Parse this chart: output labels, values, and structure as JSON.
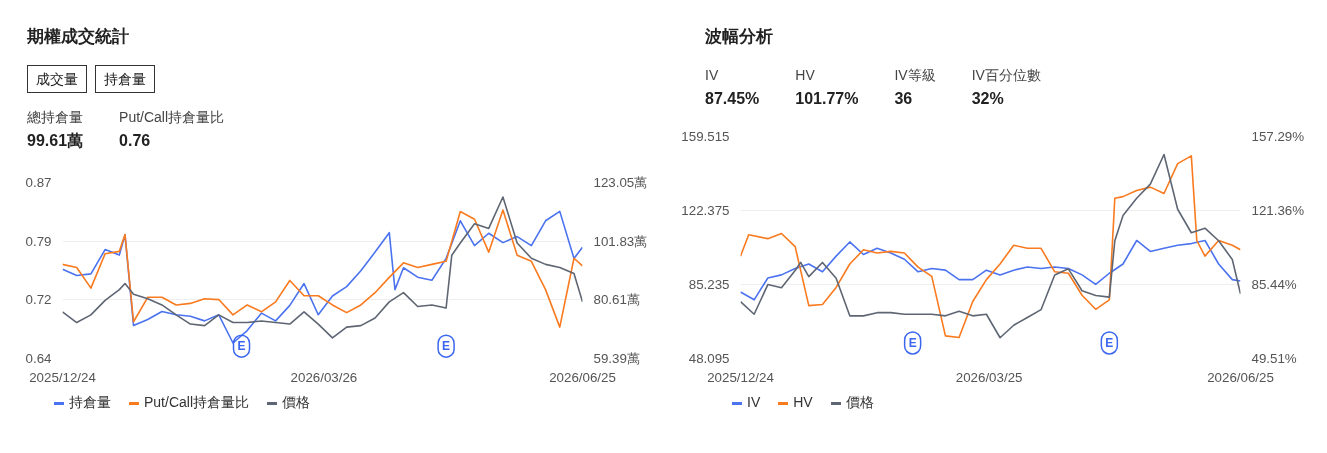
{
  "chart_data": [
    {
      "type": "line",
      "title": "期權成交統計",
      "annotations": [
        "成交量",
        "持倉量",
        "總持倉量",
        "99.61萬",
        "Put/Call持倉量比",
        "0.76",
        {
          "text": "E",
          "x": "2026-02-25"
        },
        {
          "text": "E",
          "x": "2026-05-08"
        }
      ],
      "xlim": [
        "2025-12-24",
        "2026-06-25"
      ],
      "xticks": [
        {
          "value": "2025-12-24",
          "label": "2025/12/24"
        },
        {
          "value": "2026-03-26",
          "label": "2026/03/26"
        },
        {
          "value": "2026-06-25",
          "label": "2026/06/25"
        }
      ],
      "ylim": [
        0.64,
        0.87
      ],
      "yticks": [
        0.64,
        {
          "value": 0.7167,
          "label": "0.72"
        },
        {
          "value": 0.7933,
          "label": "0.79"
        },
        0.87
      ],
      "y2lim": [
        59.39,
        123.05
      ],
      "y2ticks": [
        {
          "value": 59.39,
          "label": "59.39萬"
        },
        {
          "value": 80.61,
          "label": "80.61萬"
        },
        {
          "value": 101.83,
          "label": "101.83萬"
        },
        {
          "value": 123.05,
          "label": "123.05萬"
        }
      ],
      "grid": "y",
      "legend": "bottom",
      "marker": "none",
      "line_style": "solid",
      "series": [
        {
          "name": "持倉量",
          "color": "#4b73f0",
          "axis": "y2",
          "x": [
            "2025-12-24",
            "2025-12-29",
            "2026-01-03",
            "2026-01-08",
            "2026-01-13",
            "2026-01-15",
            "2026-01-18",
            "2026-01-23",
            "2026-01-28",
            "2026-02-02",
            "2026-02-07",
            "2026-02-12",
            "2026-02-17",
            "2026-02-22",
            "2026-02-27",
            "2026-03-04",
            "2026-03-09",
            "2026-03-14",
            "2026-03-19",
            "2026-03-24",
            "2026-03-29",
            "2026-04-03",
            "2026-04-08",
            "2026-04-13",
            "2026-04-18",
            "2026-04-20",
            "2026-04-23",
            "2026-04-28",
            "2026-05-03",
            "2026-05-08",
            "2026-05-13",
            "2026-05-18",
            "2026-05-23",
            "2026-05-28",
            "2026-06-02",
            "2026-06-07",
            "2026-06-12",
            "2026-06-17",
            "2026-06-22",
            "2026-06-25"
          ],
          "values": [
            91.7,
            89.4,
            90.0,
            98.8,
            96.8,
            104.1,
            71.3,
            73.5,
            76.4,
            75.2,
            74.7,
            73.0,
            75.2,
            65.0,
            69.5,
            75.8,
            73.0,
            78.6,
            86.5,
            75.2,
            82.0,
            85.4,
            91.1,
            97.9,
            104.9,
            84.3,
            92.2,
            88.8,
            87.7,
            95.6,
            109.2,
            100.2,
            104.7,
            101.3,
            103.5,
            100.2,
            109.2,
            112.6,
            95.6,
            99.6
          ]
        },
        {
          "name": "Put/Call持倉量比",
          "color": "#f97a1f",
          "x": [
            "2025-12-24",
            "2025-12-29",
            "2026-01-03",
            "2026-01-08",
            "2026-01-13",
            "2026-01-15",
            "2026-01-18",
            "2026-01-23",
            "2026-01-28",
            "2026-02-02",
            "2026-02-07",
            "2026-02-12",
            "2026-02-17",
            "2026-02-22",
            "2026-02-27",
            "2026-03-04",
            "2026-03-09",
            "2026-03-14",
            "2026-03-19",
            "2026-03-24",
            "2026-03-29",
            "2026-04-03",
            "2026-04-08",
            "2026-04-13",
            "2026-04-18",
            "2026-04-23",
            "2026-04-28",
            "2026-05-03",
            "2026-05-08",
            "2026-05-13",
            "2026-05-18",
            "2026-05-23",
            "2026-05-28",
            "2026-06-02",
            "2026-06-07",
            "2026-06-12",
            "2026-06-17",
            "2026-06-22",
            "2026-06-25"
          ],
          "values": [
            0.763,
            0.759,
            0.732,
            0.777,
            0.78,
            0.802,
            0.688,
            0.72,
            0.72,
            0.71,
            0.712,
            0.718,
            0.717,
            0.697,
            0.71,
            0.701,
            0.714,
            0.742,
            0.722,
            0.722,
            0.71,
            0.7,
            0.71,
            0.726,
            0.746,
            0.765,
            0.759,
            0.763,
            0.767,
            0.832,
            0.822,
            0.779,
            0.834,
            0.775,
            0.767,
            0.73,
            0.681,
            0.771,
            0.761
          ]
        },
        {
          "name": "價格",
          "color": "#5f6673",
          "x": [
            "2025-12-24",
            "2025-12-29",
            "2026-01-03",
            "2026-01-08",
            "2026-01-13",
            "2026-01-15",
            "2026-01-18",
            "2026-01-23",
            "2026-01-28",
            "2026-02-02",
            "2026-02-07",
            "2026-02-12",
            "2026-02-17",
            "2026-02-22",
            "2026-02-27",
            "2026-03-04",
            "2026-03-09",
            "2026-03-14",
            "2026-03-19",
            "2026-03-24",
            "2026-03-29",
            "2026-04-03",
            "2026-04-08",
            "2026-04-13",
            "2026-04-18",
            "2026-04-23",
            "2026-04-28",
            "2026-05-03",
            "2026-05-08",
            "2026-05-10",
            "2026-05-13",
            "2026-05-18",
            "2026-05-23",
            "2026-05-28",
            "2026-06-02",
            "2026-06-07",
            "2026-06-12",
            "2026-06-17",
            "2026-06-22",
            "2026-06-25"
          ],
          "values": [
            0.701,
            0.687,
            0.697,
            0.716,
            0.73,
            0.738,
            0.724,
            0.718,
            0.71,
            0.697,
            0.685,
            0.683,
            0.697,
            0.687,
            0.687,
            0.689,
            0.687,
            0.685,
            0.701,
            0.685,
            0.667,
            0.681,
            0.683,
            0.693,
            0.714,
            0.726,
            0.708,
            0.71,
            0.706,
            0.775,
            0.791,
            0.816,
            0.81,
            0.851,
            0.791,
            0.771,
            0.763,
            0.759,
            0.751,
            0.714
          ]
        }
      ]
    },
    {
      "type": "line",
      "title": "波幅分析",
      "annotations": [
        "IV",
        "87.45%",
        "HV",
        "101.77%",
        "IV等級",
        "36",
        "IV百分位數",
        "32%",
        {
          "text": "E",
          "x": "2026-02-25"
        },
        {
          "text": "E",
          "x": "2026-05-08"
        }
      ],
      "xlim": [
        "2025-12-24",
        "2026-06-25"
      ],
      "xticks": [
        {
          "value": "2025-12-24",
          "label": "2025/12/24"
        },
        {
          "value": "2026-03-25",
          "label": "2026/03/25"
        },
        {
          "value": "2026-06-25",
          "label": "2026/06/25"
        }
      ],
      "ylim": [
        48.095,
        159.515
      ],
      "yticks": [
        48.095,
        85.235,
        122.375,
        159.515
      ],
      "y2lim": [
        49.51,
        157.29
      ],
      "y2ticks": [
        {
          "value": 49.51,
          "label": "49.51%"
        },
        {
          "value": 85.44,
          "label": "85.44%"
        },
        {
          "value": 121.36,
          "label": "121.36%"
        },
        {
          "value": 157.29,
          "label": "157.29%"
        }
      ],
      "grid": "y",
      "legend": "bottom",
      "marker": "none",
      "line_style": "solid",
      "series": [
        {
          "name": "IV",
          "color": "#4b73f0",
          "axis": "y2",
          "x": [
            "2025-12-24",
            "2025-12-29",
            "2026-01-03",
            "2026-01-08",
            "2026-01-13",
            "2026-01-18",
            "2026-01-23",
            "2026-01-28",
            "2026-02-02",
            "2026-02-07",
            "2026-02-12",
            "2026-02-17",
            "2026-02-22",
            "2026-02-27",
            "2026-03-04",
            "2026-03-09",
            "2026-03-14",
            "2026-03-19",
            "2026-03-24",
            "2026-03-29",
            "2026-04-03",
            "2026-04-08",
            "2026-04-13",
            "2026-04-18",
            "2026-04-23",
            "2026-04-28",
            "2026-05-03",
            "2026-05-08",
            "2026-05-13",
            "2026-05-18",
            "2026-05-23",
            "2026-05-28",
            "2026-06-02",
            "2026-06-07",
            "2026-06-12",
            "2026-06-17",
            "2026-06-22",
            "2026-06-25"
          ],
          "values": [
            81.8,
            78.0,
            88.6,
            90.1,
            93.2,
            95.4,
            91.6,
            99.2,
            106.1,
            100.0,
            103.0,
            100.7,
            97.7,
            91.6,
            93.2,
            92.4,
            87.8,
            87.8,
            92.4,
            90.1,
            92.4,
            93.9,
            93.2,
            93.9,
            93.2,
            90.1,
            85.5,
            90.9,
            95.4,
            106.8,
            101.5,
            103.0,
            104.5,
            105.3,
            106.8,
            95.4,
            87.8,
            87.1
          ]
        },
        {
          "name": "HV",
          "color": "#f97a1f",
          "axis": "y2",
          "x": [
            "2025-12-24",
            "2025-12-27",
            "2026-01-03",
            "2026-01-08",
            "2026-01-13",
            "2026-01-18",
            "2026-01-23",
            "2026-01-28",
            "2026-02-02",
            "2026-02-07",
            "2026-02-12",
            "2026-02-17",
            "2026-02-22",
            "2026-02-27",
            "2026-03-04",
            "2026-03-09",
            "2026-03-14",
            "2026-03-19",
            "2026-03-24",
            "2026-03-29",
            "2026-04-03",
            "2026-04-08",
            "2026-04-13",
            "2026-04-18",
            "2026-04-23",
            "2026-04-28",
            "2026-05-03",
            "2026-05-08",
            "2026-05-10",
            "2026-05-13",
            "2026-05-18",
            "2026-05-23",
            "2026-05-28",
            "2026-06-02",
            "2026-06-07",
            "2026-06-09",
            "2026-06-12",
            "2026-06-17",
            "2026-06-22",
            "2026-06-25"
          ],
          "values": [
            99.2,
            109.6,
            107.7,
            110.2,
            103.8,
            75.2,
            75.7,
            84.0,
            95.4,
            102.3,
            100.7,
            101.5,
            100.7,
            93.9,
            89.4,
            60.5,
            59.7,
            77.2,
            87.8,
            95.4,
            104.5,
            103.0,
            103.0,
            91.6,
            90.9,
            80.2,
            73.4,
            78.0,
            127.3,
            128.1,
            131.1,
            132.7,
            129.6,
            144.1,
            147.9,
            106.8,
            99.2,
            106.8,
            104.5,
            102.3
          ]
        },
        {
          "name": "價格",
          "color": "#5f6673",
          "x": [
            "2025-12-24",
            "2025-12-29",
            "2026-01-03",
            "2026-01-08",
            "2026-01-13",
            "2026-01-15",
            "2026-01-18",
            "2026-01-23",
            "2026-01-28",
            "2026-02-02",
            "2026-02-07",
            "2026-02-12",
            "2026-02-17",
            "2026-02-22",
            "2026-02-27",
            "2026-03-04",
            "2026-03-09",
            "2026-03-14",
            "2026-03-19",
            "2026-03-24",
            "2026-03-29",
            "2026-04-03",
            "2026-04-08",
            "2026-04-13",
            "2026-04-18",
            "2026-04-23",
            "2026-04-28",
            "2026-05-03",
            "2026-05-08",
            "2026-05-10",
            "2026-05-13",
            "2026-05-18",
            "2026-05-23",
            "2026-05-28",
            "2026-06-02",
            "2026-06-07",
            "2026-06-12",
            "2026-06-17",
            "2026-06-22",
            "2026-06-25"
          ],
          "values": [
            76.6,
            70.3,
            85.2,
            83.6,
            92.3,
            96.3,
            89.2,
            96.3,
            88.4,
            69.5,
            69.5,
            71.1,
            71.1,
            70.3,
            70.3,
            70.3,
            69.5,
            71.8,
            69.5,
            70.3,
            58.5,
            64.8,
            68.7,
            72.6,
            90.0,
            93.1,
            82.1,
            79.7,
            78.9,
            107.2,
            119.9,
            128.5,
            135.6,
            150.5,
            123.0,
            111.2,
            113.5,
            107.2,
            97.8,
            80.5
          ]
        }
      ]
    }
  ]
}
